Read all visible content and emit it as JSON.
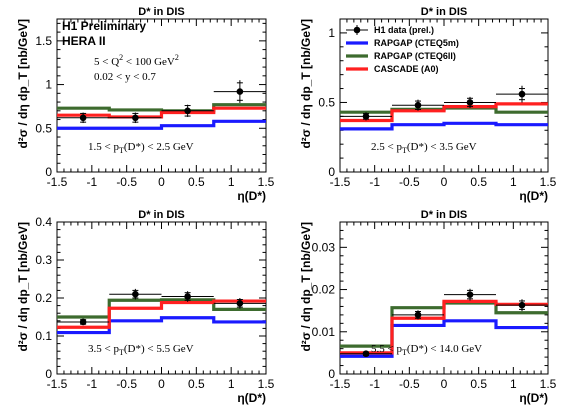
{
  "colors": {
    "data": "#000000",
    "rapgap_cteq5m": "#1a1aff",
    "rapgap_cteq6ll": "#3d6b2e",
    "cascade_a0": "#ff2020"
  },
  "legend": {
    "entries": [
      {
        "name": "H1 data (prel.)",
        "key": "data"
      },
      {
        "name": "RAPGAP (CTEQ5m)",
        "key": "rapgap_cteq5m"
      },
      {
        "name": "RAPGAP (CTEQ6ll)",
        "key": "rapgap_cteq6ll"
      },
      {
        "name": "CASCADE (A0)",
        "key": "cascade_a0"
      }
    ]
  },
  "annotations": {
    "h1_label": "H1 Preliminary",
    "hera_label": "HERA II",
    "q2_range": {
      "pre": "5 < Q",
      "sup": "2",
      "post": " < 100 GeV",
      "sup2": "2"
    },
    "y_range": "0.02 < y < 0.7"
  },
  "chart_data": [
    {
      "type": "histogram",
      "title": "D* in DIS",
      "xlabel": "η(D*)",
      "ylabel": "d²σ / dη dp_T [nb/GeV]",
      "xlim": [
        -1.5,
        1.5
      ],
      "ylim": [
        0,
        1.75
      ],
      "xticks": [
        "-1.5",
        "-1",
        "-0.5",
        "0",
        "0.5",
        "1",
        "1.5"
      ],
      "yticks": [
        "0",
        "0.5",
        "1",
        "1.5"
      ],
      "ytickvals": [
        0,
        0.5,
        1,
        1.5
      ],
      "pt_range": {
        "pre": "1.5 < p",
        "sub": "T",
        "post": "(D*) < 2.5 GeV"
      },
      "bin_edges": [
        -1.5,
        -0.75,
        0,
        0.75,
        1.5
      ],
      "data": {
        "x": [
          -1.125,
          -0.375,
          0.375,
          1.125
        ],
        "y": [
          0.62,
          0.62,
          0.7,
          0.92
        ],
        "err": [
          0.05,
          0.05,
          0.06,
          0.1
        ],
        "syst": [
          0.06,
          0.06,
          0.07,
          0.13
        ]
      },
      "series": [
        {
          "key": "rapgap_cteq5m",
          "values": [
            0.5,
            0.5,
            0.53,
            0.58
          ]
        },
        {
          "key": "rapgap_cteq6ll",
          "values": [
            0.73,
            0.71,
            0.7,
            0.77
          ]
        },
        {
          "key": "cascade_a0",
          "values": [
            0.65,
            0.63,
            0.68,
            0.73
          ]
        }
      ]
    },
    {
      "type": "histogram",
      "title": "D* in DIS",
      "xlabel": "η(D*)",
      "ylabel": "d²σ / dη dp_T [nb/GeV]",
      "xlim": [
        -1.5,
        1.5
      ],
      "ylim": [
        0,
        1.1
      ],
      "xticks": [
        "-1.5",
        "-1",
        "-0.5",
        "0",
        "0.5",
        "1",
        "1.5"
      ],
      "yticks": [
        "0",
        "0.5",
        "1"
      ],
      "ytickvals": [
        0,
        0.5,
        1
      ],
      "pt_range": {
        "pre": "2.5 < p",
        "sub": "T",
        "post": "(D*) < 3.5 GeV"
      },
      "bin_edges": [
        -1.5,
        -0.75,
        0,
        0.75,
        1.5
      ],
      "data": {
        "x": [
          -1.125,
          -0.375,
          0.375,
          1.125
        ],
        "y": [
          0.4,
          0.48,
          0.5,
          0.56
        ],
        "err": [
          0.02,
          0.03,
          0.03,
          0.04
        ],
        "syst": [
          0.03,
          0.04,
          0.04,
          0.06
        ]
      },
      "series": [
        {
          "key": "rapgap_cteq5m",
          "values": [
            0.31,
            0.34,
            0.35,
            0.34
          ]
        },
        {
          "key": "rapgap_cteq6ll",
          "values": [
            0.43,
            0.45,
            0.46,
            0.43
          ]
        },
        {
          "key": "cascade_a0",
          "values": [
            0.37,
            0.44,
            0.47,
            0.49
          ]
        }
      ]
    },
    {
      "type": "histogram",
      "title": "D* in DIS",
      "xlabel": "η(D*)",
      "ylabel": "d²σ / dη dp_T [nb/GeV]",
      "xlim": [
        -1.5,
        1.5
      ],
      "ylim": [
        0,
        0.4
      ],
      "xticks": [
        "-1.5",
        "-1",
        "-0.5",
        "0",
        "0.5",
        "1",
        "1.5"
      ],
      "yticks": [
        "0",
        "0.1",
        "0.2",
        "0.3",
        "0.4"
      ],
      "ytickvals": [
        0,
        0.1,
        0.2,
        0.3,
        0.4
      ],
      "pt_range": {
        "pre": "3.5 < p",
        "sub": "T",
        "post": "(D*) < 5.5 GeV"
      },
      "bin_edges": [
        -1.5,
        -0.75,
        0,
        0.75,
        1.5
      ],
      "data": {
        "x": [
          -1.125,
          -0.375,
          0.375,
          1.125
        ],
        "y": [
          0.137,
          0.21,
          0.204,
          0.186
        ],
        "err": [
          0.006,
          0.01,
          0.01,
          0.01
        ],
        "syst": [
          0.008,
          0.014,
          0.014,
          0.014
        ]
      },
      "series": [
        {
          "key": "rapgap_cteq5m",
          "values": [
            0.109,
            0.14,
            0.148,
            0.137
          ]
        },
        {
          "key": "rapgap_cteq6ll",
          "values": [
            0.15,
            0.194,
            0.195,
            0.17
          ]
        },
        {
          "key": "cascade_a0",
          "values": [
            0.123,
            0.173,
            0.188,
            0.192
          ]
        }
      ]
    },
    {
      "type": "histogram",
      "title": "D* in DIS",
      "xlabel": "η(D*)",
      "ylabel": "d²σ / dη dp_T [nb/GeV]",
      "xlim": [
        -1.5,
        1.5
      ],
      "ylim": [
        0,
        0.036
      ],
      "xticks": [
        "-1.5",
        "-1",
        "-0.5",
        "0",
        "0.5",
        "1",
        "1.5"
      ],
      "yticks": [
        "0",
        "0.01",
        "0.02",
        "0.03"
      ],
      "ytickvals": [
        0,
        0.01,
        0.02,
        0.03
      ],
      "pt_range": {
        "pre": "5.5 < p",
        "sub": "T",
        "post": "(D*) < 14.0 GeV"
      },
      "bin_edges": [
        -1.5,
        -0.75,
        0,
        0.75,
        1.5
      ],
      "data": {
        "x": [
          -1.125,
          -0.375,
          0.375,
          1.125
        ],
        "y": [
          0.0048,
          0.014,
          0.0188,
          0.0163
        ],
        "err": [
          0.0004,
          0.0008,
          0.001,
          0.001
        ],
        "syst": [
          0.0005,
          0.0011,
          0.0014,
          0.0014
        ]
      },
      "series": [
        {
          "key": "rapgap_cteq5m",
          "values": [
            0.0042,
            0.0115,
            0.0126,
            0.011
          ]
        },
        {
          "key": "rapgap_cteq6ll",
          "values": [
            0.0066,
            0.0157,
            0.0168,
            0.0145
          ]
        },
        {
          "key": "cascade_a0",
          "values": [
            0.005,
            0.0132,
            0.0172,
            0.0165
          ]
        }
      ]
    }
  ]
}
